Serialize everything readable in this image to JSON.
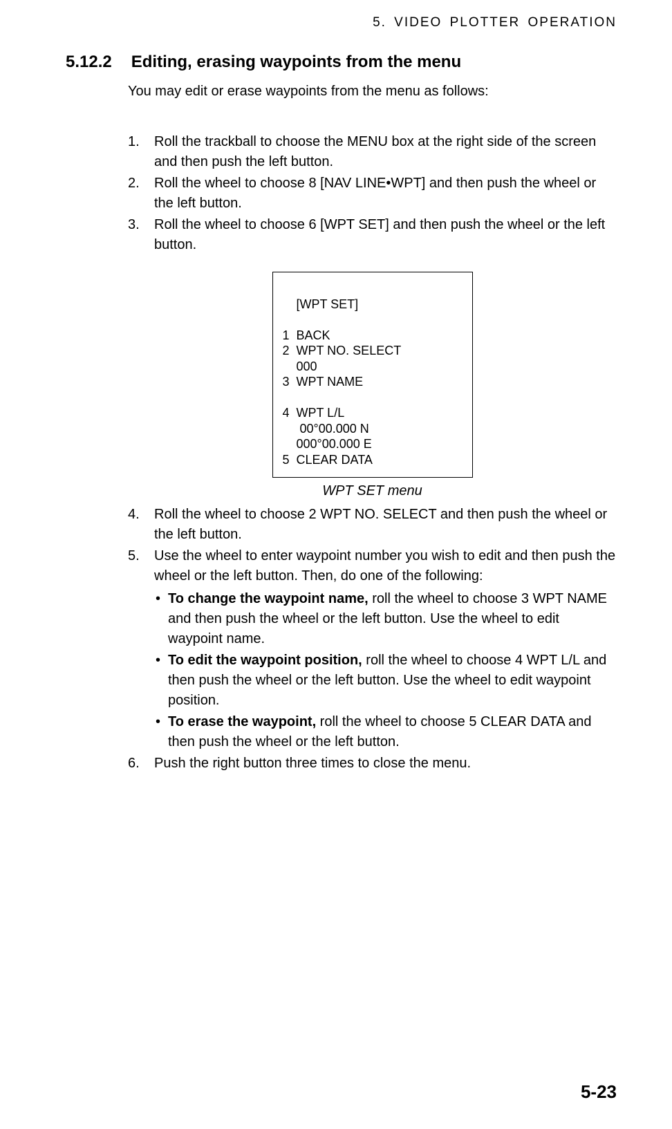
{
  "header": {
    "running": "5.  VIDEO  PLOTTER  OPERATION"
  },
  "section": {
    "number": "5.12.2",
    "title": "Editing, erasing waypoints from the menu"
  },
  "intro": "You may edit or erase waypoints from the menu as follows:",
  "steps": {
    "s1": "Roll the trackball to choose the MENU box at the right side of the screen and then push the left button.",
    "s2": "Roll the wheel to choose 8 [NAV LINE•WPT] and then push the wheel or the left button.",
    "s3": "Roll the wheel to choose 6 [WPT SET] and then push the wheel or the left button.",
    "s4": "Roll the wheel to choose 2 WPT NO. SELECT and then push the wheel or the left button.",
    "s5": "Use the wheel to enter waypoint number you wish to edit and then push the wheel or the left button. Then, do one of the following:",
    "s6": "Push the right button three times to close the menu."
  },
  "menu": {
    "title": "    [WPT SET]",
    "l1": "1  BACK",
    "l2": "2  WPT NO. SELECT",
    "l2v": "    000",
    "l3": "3  WPT NAME",
    "l4": "4  WPT L/L",
    "l4a": "     00°00.000 N",
    "l4b": "    000°00.000 E",
    "l5": "5  CLEAR DATA",
    "caption": "WPT SET menu"
  },
  "bullets": {
    "b1_lead": "To change the waypoint name,",
    "b1_rest": " roll the wheel to choose 3 WPT NAME and then push the wheel or the left button. Use the wheel to edit waypoint name.",
    "b2_lead": "To edit the waypoint position,",
    "b2_rest": " roll the wheel to choose 4 WPT L/L and then push the wheel or the left button. Use the wheel to edit waypoint position.",
    "b3_lead": "To erase the waypoint,",
    "b3_rest": " roll the wheel to choose 5 CLEAR DATA and then push the wheel or the left button."
  },
  "footer": {
    "pageNumber": "5-23"
  },
  "style": {
    "bullet_glyph": "•"
  }
}
